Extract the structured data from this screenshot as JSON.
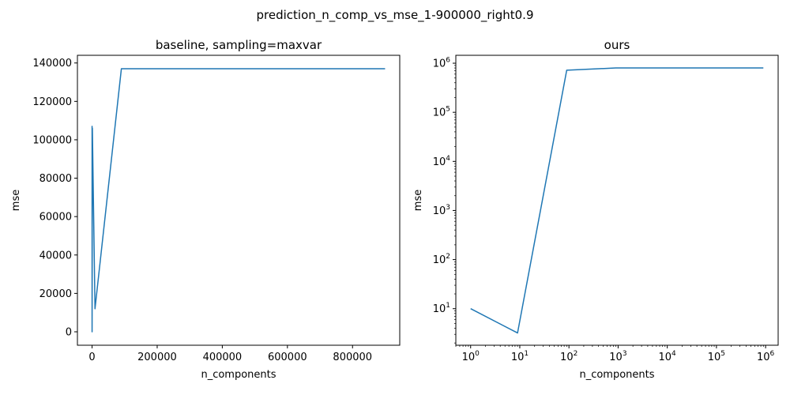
{
  "figure": {
    "suptitle": "prediction_n_comp_vs_mse_1-900000_right0.9"
  },
  "chart_data": [
    {
      "type": "line",
      "title": "baseline, sampling=maxvar",
      "xlabel": "n_components",
      "ylabel": "mse",
      "xscale": "linear",
      "yscale": "linear",
      "xlim": [
        -45000,
        945000
      ],
      "ylim": [
        -7000,
        144000
      ],
      "xticks": [
        0,
        200000,
        400000,
        600000,
        800000
      ],
      "xtick_labels": [
        "0",
        "200000",
        "400000",
        "600000",
        "800000"
      ],
      "yticks": [
        0,
        20000,
        40000,
        60000,
        80000,
        100000,
        120000,
        140000
      ],
      "ytick_labels": [
        "0",
        "20000",
        "40000",
        "60000",
        "80000",
        "100000",
        "120000",
        "140000"
      ],
      "grid": false,
      "color": "#1f77b4",
      "series": [
        {
          "x": [
            1,
            9,
            90,
            900,
            9000,
            90000,
            900000
          ],
          "y": [
            0,
            107000,
            0,
            106000,
            12000,
            137000,
            137000
          ]
        }
      ]
    },
    {
      "type": "line",
      "title": "ours",
      "xlabel": "n_components",
      "ylabel": "mse",
      "xscale": "log",
      "yscale": "log",
      "xlim": [
        0.5,
        1800000
      ],
      "ylim": [
        1.8,
        1450000
      ],
      "xticks": [
        1,
        10,
        100,
        1000,
        10000,
        100000,
        1000000
      ],
      "xtick_exponents": [
        "0",
        "1",
        "2",
        "3",
        "4",
        "5",
        "6"
      ],
      "yticks": [
        10,
        100,
        1000,
        10000,
        100000,
        1000000
      ],
      "ytick_exponents": [
        "1",
        "2",
        "3",
        "4",
        "5",
        "6"
      ],
      "tick_base": "10",
      "grid": false,
      "color": "#1f77b4",
      "series": [
        {
          "x": [
            1,
            9,
            90,
            900,
            9000,
            90000,
            900000
          ],
          "y": [
            10,
            3.2,
            720000,
            800000,
            800000,
            800000,
            800000
          ]
        }
      ]
    }
  ]
}
